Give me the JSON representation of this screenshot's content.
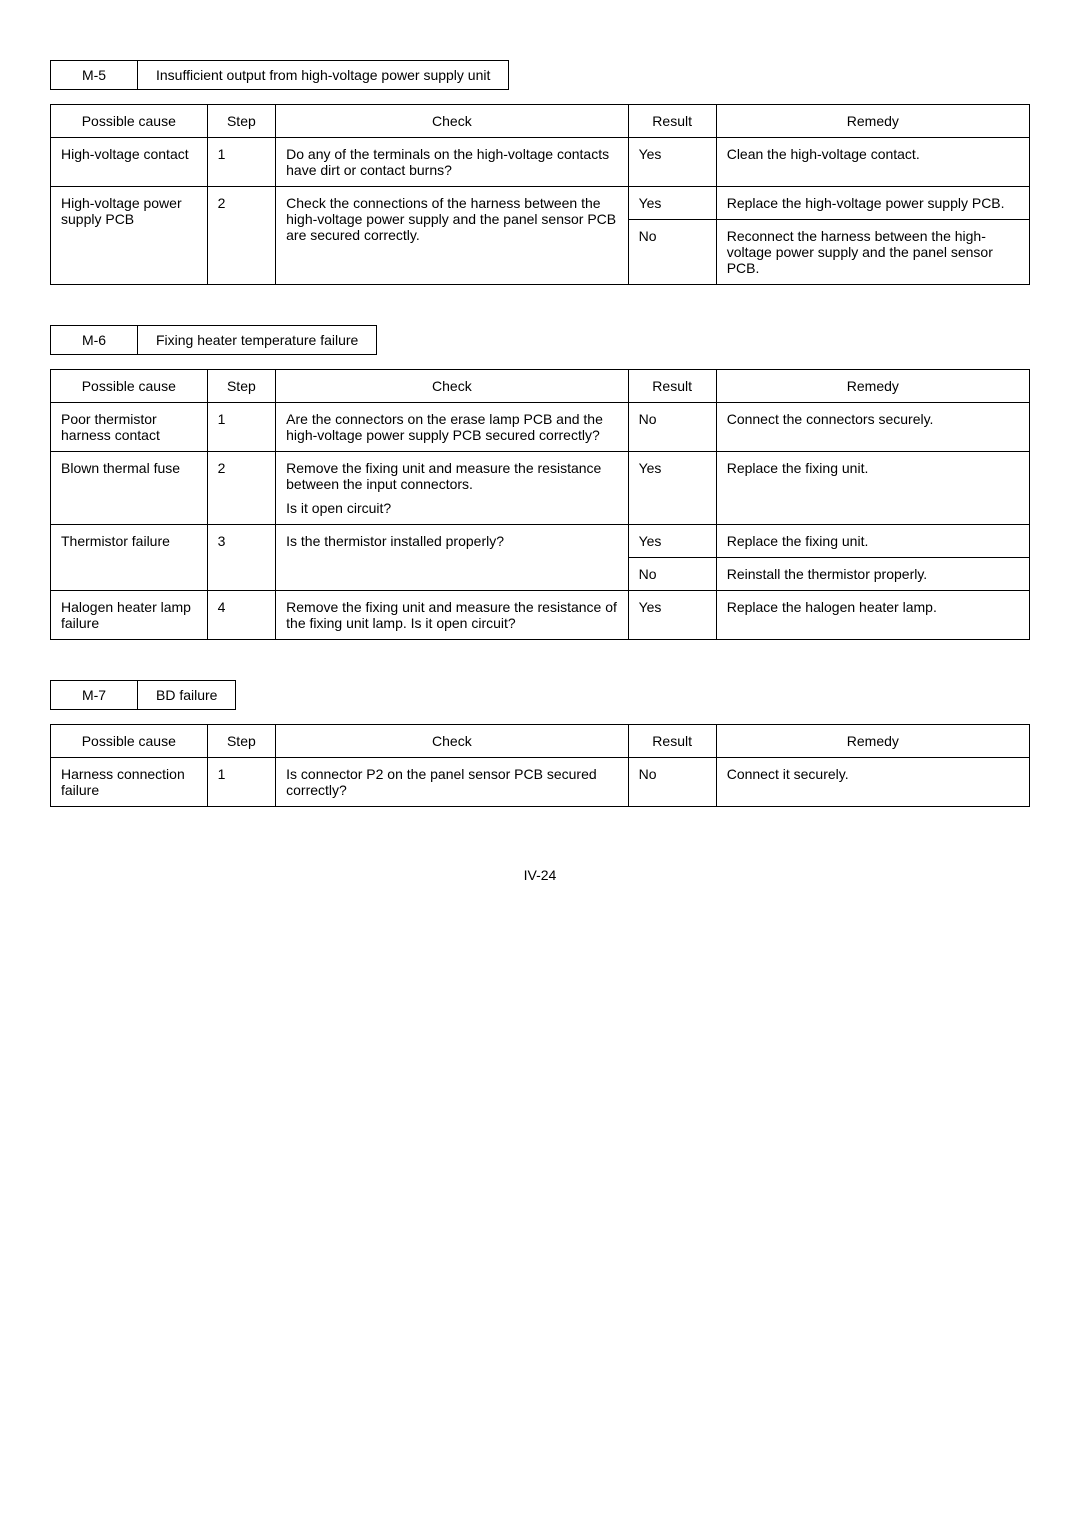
{
  "sections": [
    {
      "code": "M-5",
      "title": "Insufficient output from high-voltage power supply unit",
      "headers": {
        "cause": "Possible cause",
        "step": "Step",
        "check": "Check",
        "result": "Result",
        "remedy": "Remedy"
      },
      "rows": [
        {
          "cause": "High-voltage contact",
          "step": "1",
          "check": "Do any of the terminals on the high-voltage contacts have dirt or contact burns?",
          "results": [
            {
              "result": "Yes",
              "remedy": "Clean the high-voltage contact."
            }
          ]
        },
        {
          "cause": "High-voltage power supply PCB",
          "step": "2",
          "check": "Check the connections of the harness between the high-voltage power supply and the panel sensor PCB are secured correctly.",
          "results": [
            {
              "result": "Yes",
              "remedy": "Replace the high-voltage power supply PCB."
            },
            {
              "result": "No",
              "remedy": "Reconnect the harness between the high-voltage power supply and the panel sensor PCB."
            }
          ]
        }
      ]
    },
    {
      "code": "M-6",
      "title": "Fixing heater temperature failure",
      "headers": {
        "cause": "Possible cause",
        "step": "Step",
        "check": "Check",
        "result": "Result",
        "remedy": "Remedy"
      },
      "rows": [
        {
          "cause": "Poor thermistor harness contact",
          "step": "1",
          "check": "Are the connectors on the erase lamp PCB and the high-voltage power supply PCB secured correctly?",
          "results": [
            {
              "result": "No",
              "remedy": "Connect the connectors securely."
            }
          ]
        },
        {
          "cause": "Blown thermal fuse",
          "step": "2",
          "check": "Remove the fixing unit and measure the resistance between the input connectors.\nIs it open circuit?",
          "results": [
            {
              "result": "Yes",
              "remedy": "Replace the fixing unit."
            }
          ]
        },
        {
          "cause": "Thermistor failure",
          "step": "3",
          "check": "Is the thermistor installed properly?",
          "results": [
            {
              "result": "Yes",
              "remedy": "Replace the fixing unit."
            },
            {
              "result": "No",
              "remedy": "Reinstall the thermistor properly."
            }
          ]
        },
        {
          "cause": "Halogen heater lamp failure",
          "step": "4",
          "check": "Remove the fixing unit and measure the resistance of the fixing unit lamp. Is it open circuit?",
          "results": [
            {
              "result": "Yes",
              "remedy": "Replace the halogen heater lamp."
            }
          ]
        }
      ]
    },
    {
      "code": "M-7",
      "title": "BD failure",
      "headers": {
        "cause": "Possible cause",
        "step": "Step",
        "check": "Check",
        "result": "Result",
        "remedy": "Remedy"
      },
      "rows": [
        {
          "cause": "Harness connection failure",
          "step": "1",
          "check": "Is connector P2 on the panel sensor PCB secured correctly?",
          "results": [
            {
              "result": "No",
              "remedy": "Connect it securely."
            }
          ]
        }
      ]
    }
  ],
  "footer": "IV-24"
}
